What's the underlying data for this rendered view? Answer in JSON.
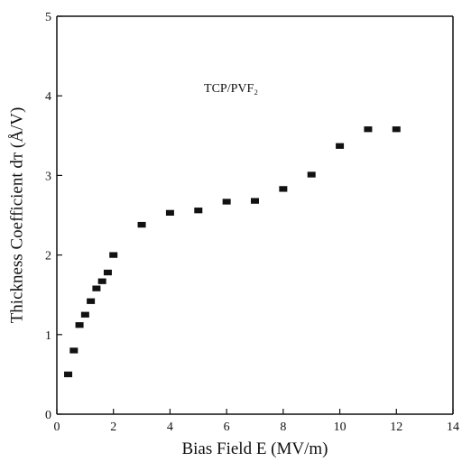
{
  "chart_data": {
    "type": "scatter",
    "title": "",
    "annotation": "TCP/PVF₂",
    "xlabel": "Bias Field E (MV/m)",
    "ylabel": "Thickness Coefficient dᴛ (Å/V)",
    "xlim": [
      0,
      14
    ],
    "ylim": [
      0,
      5
    ],
    "xticks": [
      0,
      2,
      4,
      6,
      8,
      10,
      12,
      14
    ],
    "yticks": [
      0,
      1,
      2,
      3,
      4,
      5
    ],
    "grid": false,
    "marker": "square",
    "color": "#111111",
    "series": [
      {
        "x": [
          0.4,
          0.6,
          0.8,
          1.0,
          1.2,
          1.4,
          1.6,
          1.8,
          2.0,
          3.0,
          4.0,
          5.0,
          6.0,
          7.0,
          8.0,
          9.0,
          10.0,
          11.0,
          12.0
        ],
        "y": [
          0.5,
          0.8,
          1.12,
          1.25,
          1.42,
          1.58,
          1.67,
          1.78,
          2.0,
          2.38,
          2.53,
          2.56,
          2.67,
          2.68,
          2.83,
          3.01,
          3.37,
          3.58,
          3.58
        ]
      }
    ]
  }
}
